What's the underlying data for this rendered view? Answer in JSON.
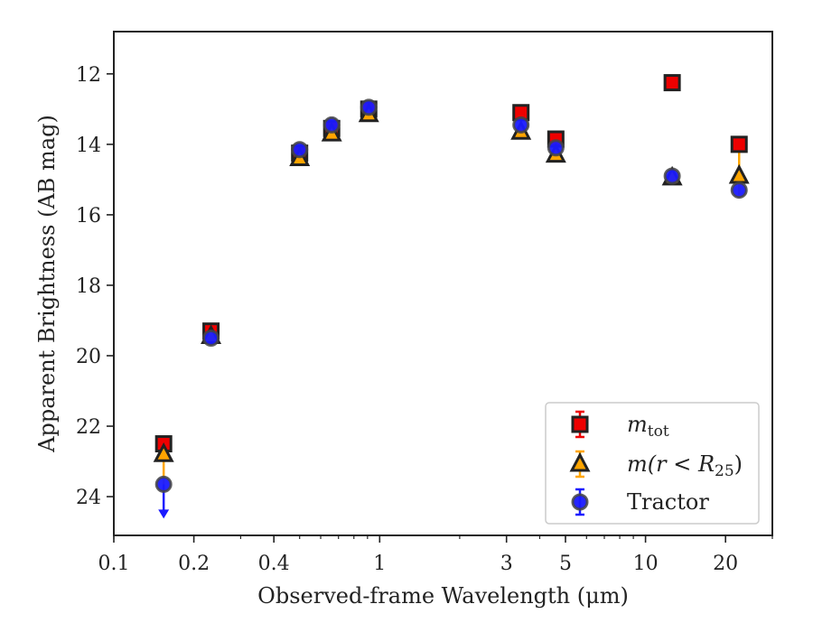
{
  "chart_data": {
    "type": "scatter",
    "xlabel": "Observed-frame Wavelength (μm)",
    "ylabel": "Apparent Brightness (AB mag)",
    "x_scale": "log",
    "xlim": [
      0.1,
      30
    ],
    "ylim": [
      25.1,
      10.8
    ],
    "y_inverted": true,
    "x_ticks": [
      {
        "value": 0.1,
        "label": "0.1"
      },
      {
        "value": 0.2,
        "label": "0.2"
      },
      {
        "value": 0.4,
        "label": "0.4"
      },
      {
        "value": 1,
        "label": "1"
      },
      {
        "value": 3,
        "label": "3"
      },
      {
        "value": 5,
        "label": "5"
      },
      {
        "value": 10,
        "label": "10"
      },
      {
        "value": 20,
        "label": "20"
      }
    ],
    "y_ticks": [
      {
        "value": 12,
        "label": "12"
      },
      {
        "value": 14,
        "label": "14"
      },
      {
        "value": 16,
        "label": "16"
      },
      {
        "value": 18,
        "label": "18"
      },
      {
        "value": 20,
        "label": "20"
      },
      {
        "value": 22,
        "label": "22"
      },
      {
        "value": 24,
        "label": "24"
      }
    ],
    "grid": false,
    "legend_position": "lower-right",
    "series": [
      {
        "name": "m_tot",
        "legend_label_main": "m",
        "legend_label_sub": "tot",
        "marker": "square",
        "color": "#ee0000",
        "edge": "#222222",
        "points": [
          {
            "x": 0.154,
            "y": 22.5
          },
          {
            "x": 0.232,
            "y": 19.3
          },
          {
            "x": 0.5,
            "y": 14.25
          },
          {
            "x": 0.66,
            "y": 13.55
          },
          {
            "x": 0.91,
            "y": 13.0
          },
          {
            "x": 3.4,
            "y": 13.1
          },
          {
            "x": 4.6,
            "y": 13.85
          },
          {
            "x": 12.6,
            "y": 12.25
          },
          {
            "x": 22.5,
            "y": 14.0
          }
        ]
      },
      {
        "name": "m(r < R25)",
        "legend_label_main": "m(r < R",
        "legend_label_sub": "25",
        "legend_label_tail": ")",
        "marker": "triangle",
        "color": "#ffa500",
        "edge": "#222222",
        "points": [
          {
            "x": 0.154,
            "y": 22.8
          },
          {
            "x": 0.232,
            "y": 19.45
          },
          {
            "x": 0.5,
            "y": 14.4
          },
          {
            "x": 0.66,
            "y": 13.7
          },
          {
            "x": 0.91,
            "y": 13.15
          },
          {
            "x": 3.4,
            "y": 13.65
          },
          {
            "x": 4.6,
            "y": 14.3
          },
          {
            "x": 12.6,
            "y": 14.95
          },
          {
            "x": 22.5,
            "y": 14.9
          }
        ]
      },
      {
        "name": "Tractor",
        "marker": "circle",
        "color": "#1a1aff",
        "edge": "#444444",
        "points": [
          {
            "x": 0.154,
            "y": 23.65,
            "upper_limit": true
          },
          {
            "x": 0.232,
            "y": 19.5
          },
          {
            "x": 0.5,
            "y": 14.15
          },
          {
            "x": 0.66,
            "y": 13.45
          },
          {
            "x": 0.91,
            "y": 12.95
          },
          {
            "x": 3.4,
            "y": 13.45
          },
          {
            "x": 4.6,
            "y": 14.1
          },
          {
            "x": 12.6,
            "y": 14.9
          },
          {
            "x": 22.5,
            "y": 15.3
          }
        ]
      }
    ],
    "error_bar_22um": {
      "x": 22.5,
      "y_low": 14.0,
      "y_high": 15.45
    }
  }
}
